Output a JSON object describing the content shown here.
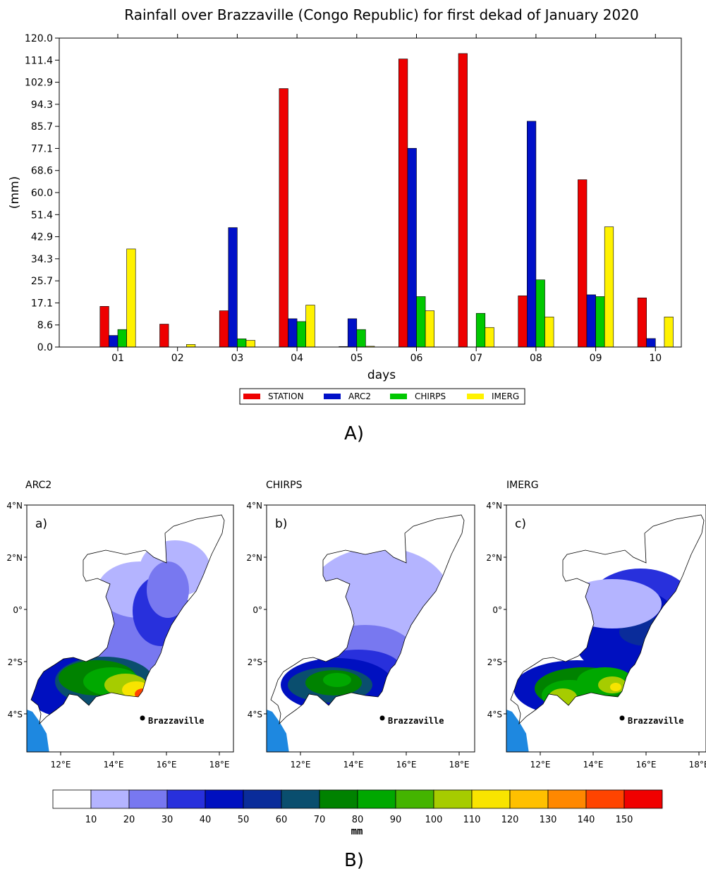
{
  "chart_data": [
    {
      "type": "bar",
      "title": "Rainfall over Brazzaville (Congo Republic) for first dekad of January 2020",
      "xlabel": "days",
      "ylabel": "(mm)",
      "ylim": [
        0,
        120
      ],
      "yticks": [
        "0.0",
        "8.6",
        "17.1",
        "25.7",
        "34.3",
        "42.9",
        "51.4",
        "60.0",
        "68.6",
        "77.1",
        "85.7",
        "94.3",
        "102.9",
        "111.4",
        "120.0"
      ],
      "categories": [
        "01",
        "02",
        "03",
        "04",
        "05",
        "06",
        "07",
        "08",
        "09",
        "10"
      ],
      "legend_position": "bottom",
      "series": [
        {
          "name": "STATION",
          "color": "#ee0000",
          "values": [
            15.8,
            8.9,
            14.1,
            100.4,
            0.2,
            111.9,
            114.0,
            19.9,
            65.0,
            19.1
          ]
        },
        {
          "name": "ARC2",
          "color": "#0010c8",
          "values": [
            4.5,
            0.0,
            46.4,
            11.0,
            11.0,
            77.2,
            0.0,
            87.7,
            20.3,
            3.3
          ]
        },
        {
          "name": "CHIRPS",
          "color": "#00c800",
          "values": [
            6.8,
            0.0,
            3.2,
            9.9,
            6.8,
            19.6,
            13.1,
            26.1,
            19.6,
            0.0
          ]
        },
        {
          "name": "IMERG",
          "color": "#fff200",
          "values": [
            38.1,
            1.0,
            2.6,
            16.3,
            0.3,
            14.1,
            7.6,
            11.7,
            46.7,
            11.7
          ]
        }
      ]
    },
    {
      "type": "heatmap",
      "panels": [
        {
          "name": "ARC2",
          "label": "a)"
        },
        {
          "name": "CHIRPS",
          "label": "b)"
        },
        {
          "name": "IMERG",
          "label": "c)"
        }
      ],
      "city": "Brazzaville",
      "lat_ticks": [
        "4°N",
        "2°N",
        "0°",
        "2°S",
        "4°S"
      ],
      "lon_ticks": [
        "12°E",
        "14°E",
        "16°E",
        "18°E"
      ],
      "colorbar_levels": [
        "10",
        "20",
        "30",
        "40",
        "50",
        "60",
        "70",
        "80",
        "90",
        "100",
        "110",
        "120",
        "130",
        "140",
        "150"
      ],
      "colorbar_colors": [
        "#ffffff",
        "#b4b4ff",
        "#7878f0",
        "#2830dc",
        "#0010c0",
        "#0a2c9a",
        "#0a4e6e",
        "#008200",
        "#00a800",
        "#44b400",
        "#a6cc00",
        "#f8e400",
        "#ffc000",
        "#ff8800",
        "#ff4400",
        "#f00000"
      ],
      "colorbar_unit": "mm"
    }
  ],
  "captions": {
    "a": "A)",
    "b": "B)"
  }
}
